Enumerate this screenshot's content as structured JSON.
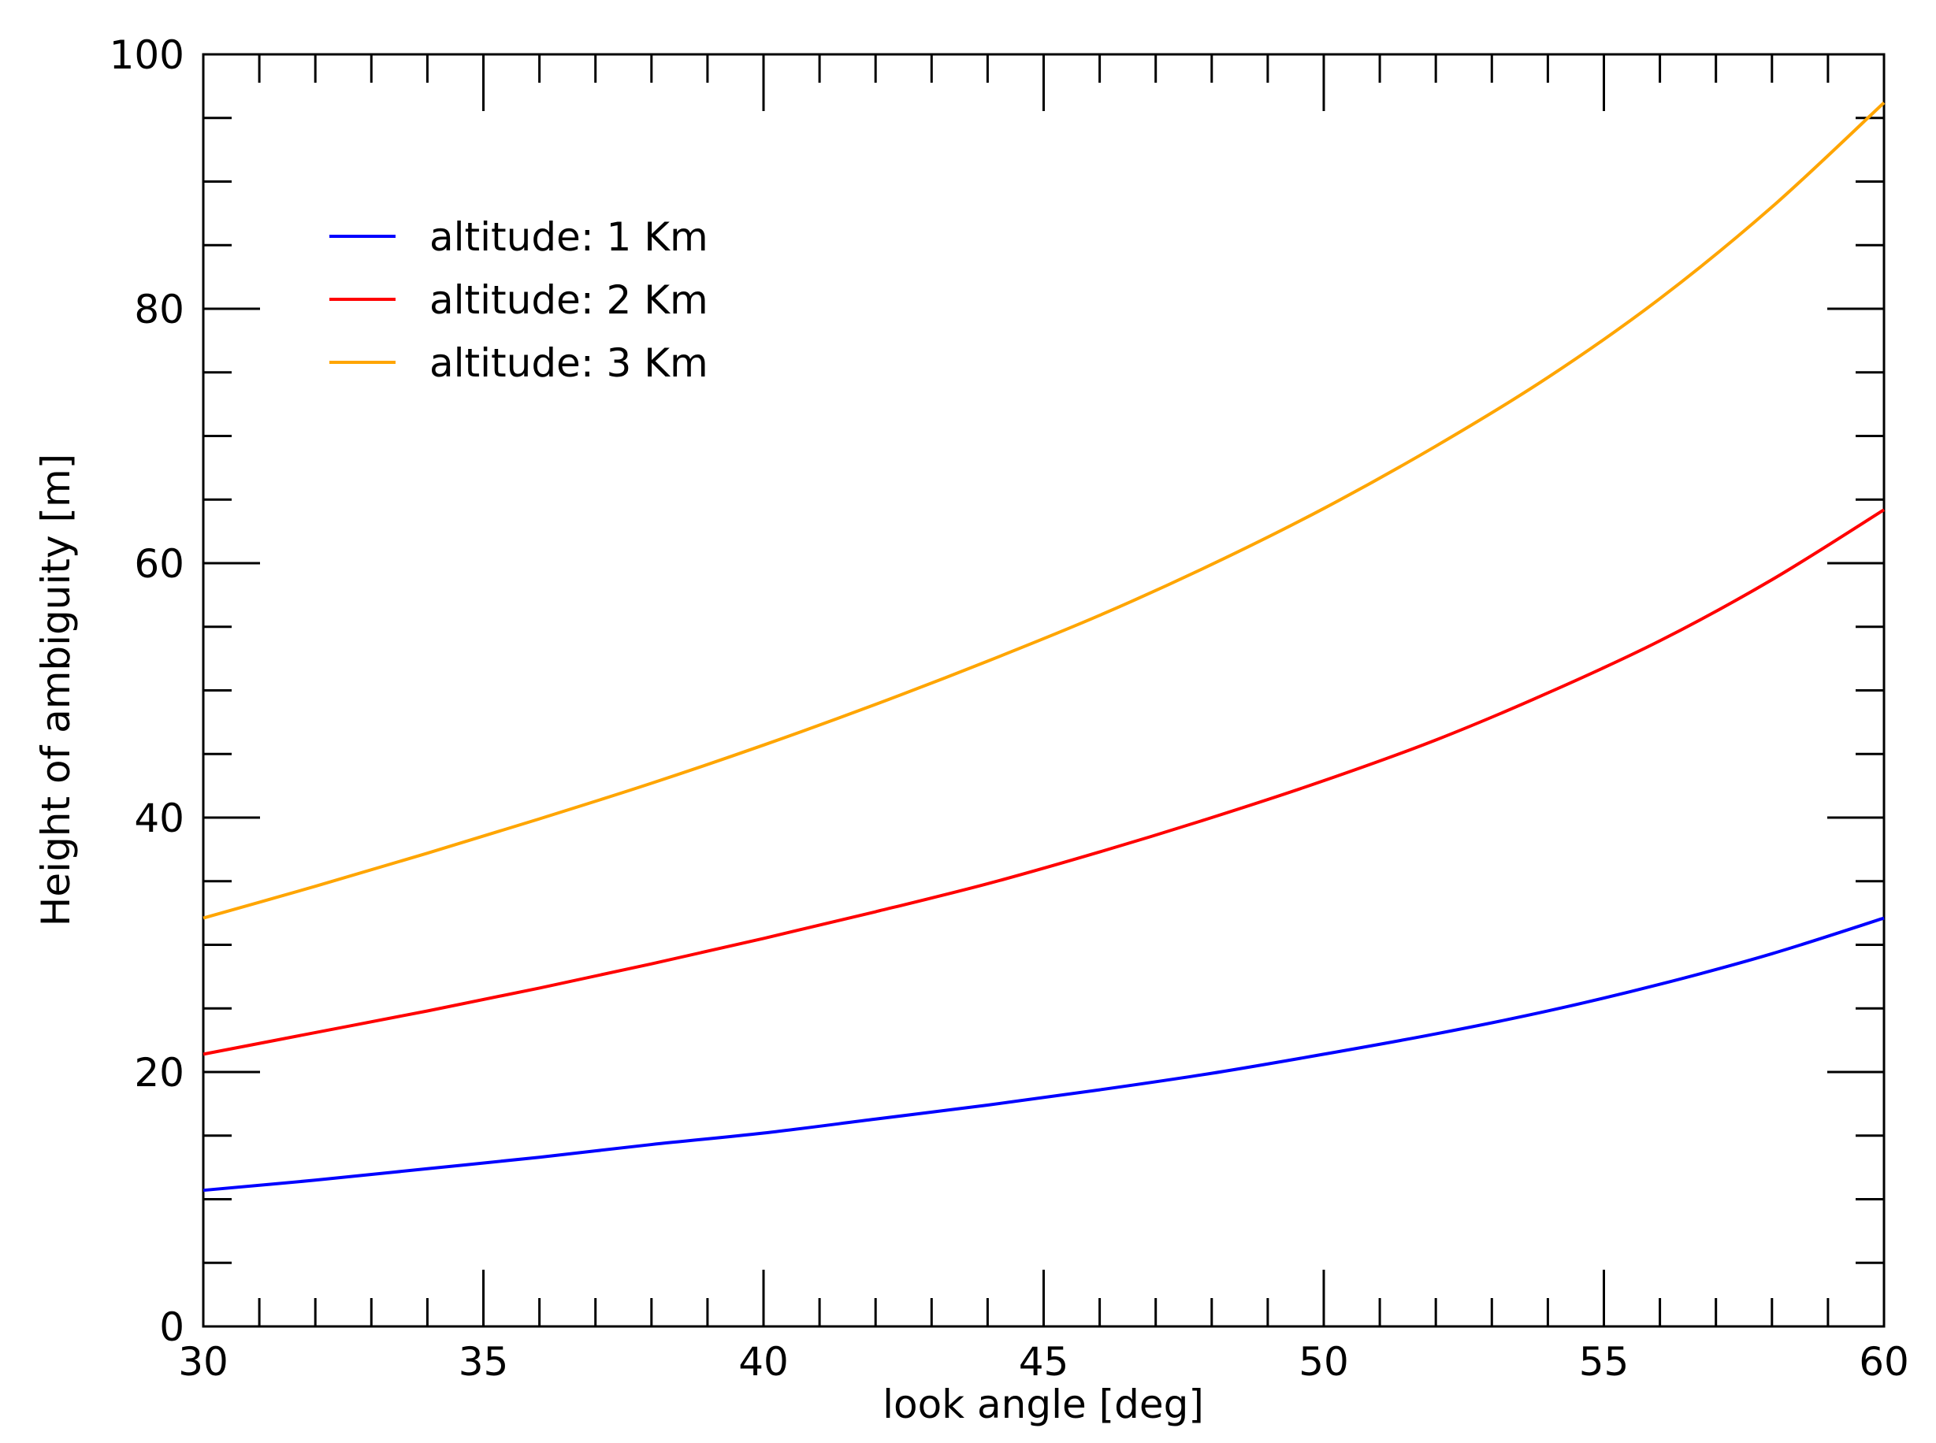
{
  "chart_data": {
    "type": "line",
    "xlabel": "look angle [deg]",
    "ylabel": "Height of ambiguity [m]",
    "xlim": [
      30,
      60
    ],
    "ylim": [
      0,
      100
    ],
    "xticks": [
      30,
      35,
      40,
      45,
      50,
      55,
      60
    ],
    "yticks": [
      0,
      20,
      40,
      60,
      80,
      100
    ],
    "x_minor_step": 1,
    "y_minor_step": 5,
    "grid": false,
    "legend_position": "top-left",
    "x": [
      30,
      32,
      34,
      36,
      38,
      40,
      42,
      44,
      46,
      48,
      50,
      52,
      54,
      56,
      58,
      60
    ],
    "series": [
      {
        "name": "altitude: 1 Km",
        "color": "#0000ff",
        "values": [
          10.7,
          11.5,
          12.4,
          13.3,
          14.3,
          15.2,
          16.3,
          17.4,
          18.6,
          19.9,
          21.4,
          23.0,
          24.8,
          26.9,
          29.3,
          32.1
        ]
      },
      {
        "name": "altitude: 2 Km",
        "color": "#ff0000",
        "values": [
          21.4,
          23.1,
          24.8,
          26.6,
          28.5,
          30.5,
          32.6,
          34.8,
          37.3,
          40.0,
          42.9,
          46.1,
          49.8,
          53.9,
          58.7,
          64.2
        ]
      },
      {
        "name": "altitude: 3 Km",
        "color": "#ffa500",
        "values": [
          32.1,
          34.6,
          37.2,
          39.9,
          42.7,
          45.7,
          48.9,
          52.3,
          55.9,
          59.9,
          64.3,
          69.2,
          74.6,
          80.8,
          88.0,
          96.2
        ]
      }
    ]
  }
}
